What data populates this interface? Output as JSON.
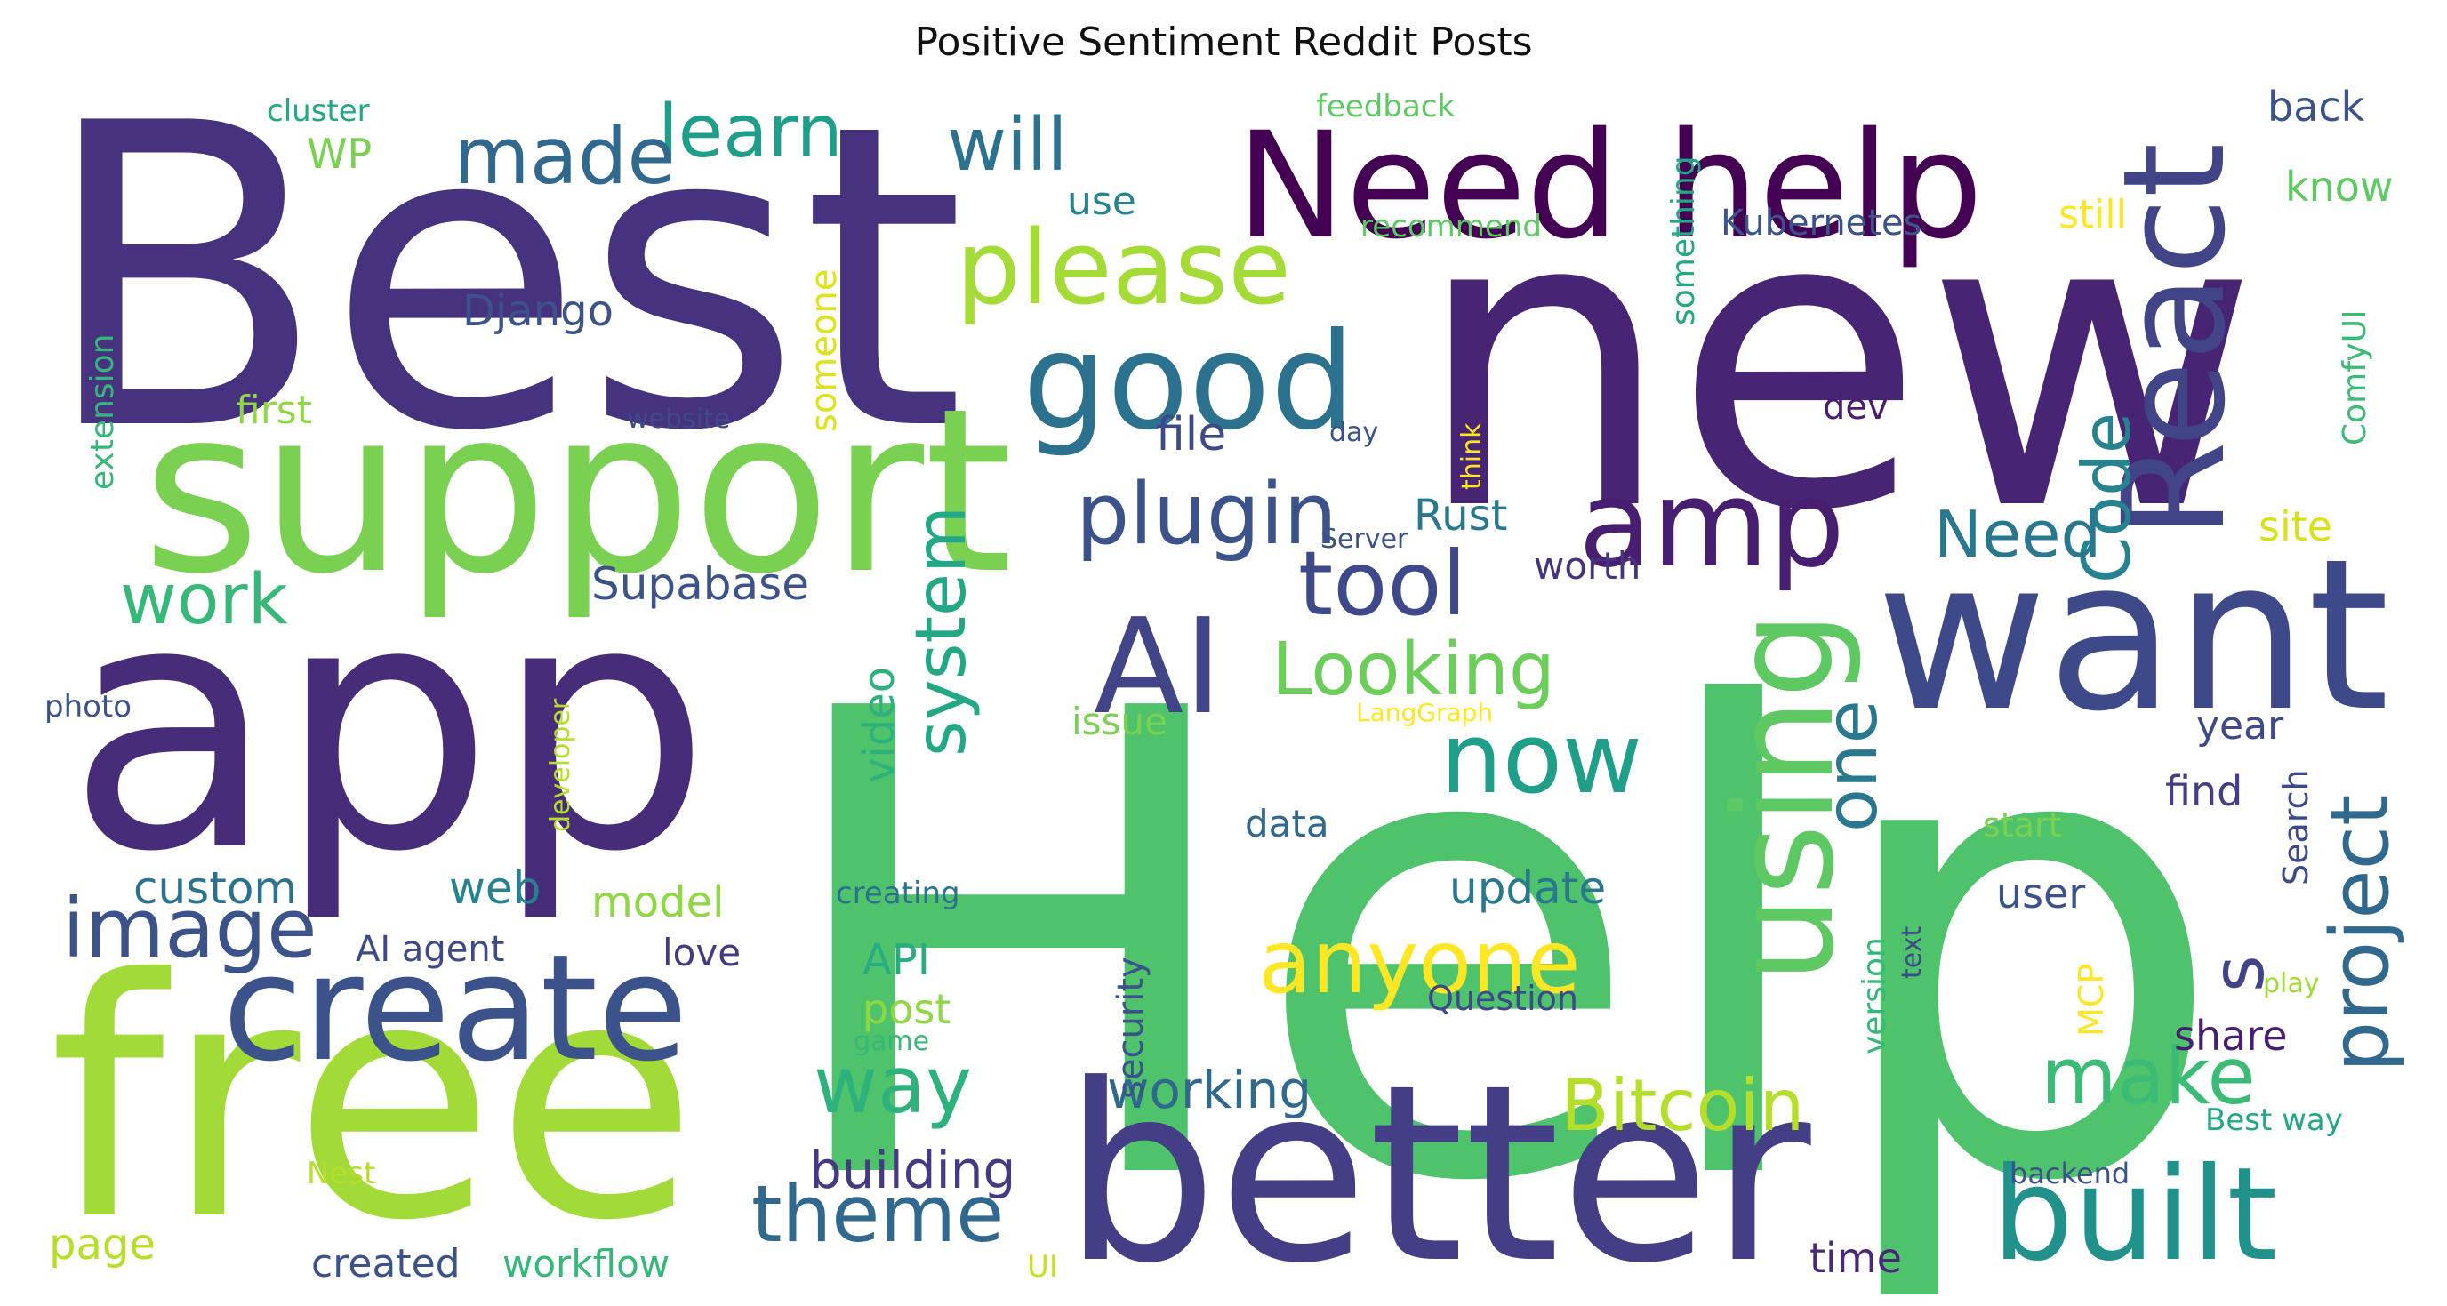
{
  "title": "Positive Sentiment Reddit Posts",
  "words": [
    {
      "text": "Help",
      "weight": 1.0,
      "color": "#4ec36b"
    },
    {
      "text": "Best",
      "weight": 0.93,
      "color": "#46327e"
    },
    {
      "text": "new",
      "weight": 0.9,
      "color": "#482475"
    },
    {
      "text": "app",
      "weight": 0.78,
      "color": "#472c7a"
    },
    {
      "text": "free",
      "weight": 0.74,
      "color": "#a2da37"
    },
    {
      "text": "better",
      "weight": 0.56,
      "color": "#433e85"
    },
    {
      "text": "support",
      "weight": 0.55,
      "color": "#7ad151"
    },
    {
      "text": "want",
      "weight": 0.47,
      "color": "#3e4989"
    },
    {
      "text": "create",
      "weight": 0.4,
      "color": "#3b528b"
    },
    {
      "text": "Need help",
      "weight": 0.4,
      "color": "#440154"
    },
    {
      "text": "using",
      "weight": 0.38,
      "color": "#5ec962"
    },
    {
      "text": "React",
      "weight": 0.38,
      "color": "#414487"
    },
    {
      "text": "good",
      "weight": 0.37,
      "color": "#2c728e"
    },
    {
      "text": "AI",
      "weight": 0.35,
      "color": "#414487"
    },
    {
      "text": "built",
      "weight": 0.35,
      "color": "#21918c"
    },
    {
      "text": "amp",
      "weight": 0.33,
      "color": "#481f70"
    },
    {
      "text": "project",
      "weight": 0.28,
      "color": "#31688e"
    },
    {
      "text": "please",
      "weight": 0.27,
      "color": "#a5db36"
    },
    {
      "text": "image",
      "weight": 0.26,
      "color": "#3b528b"
    },
    {
      "text": "one",
      "weight": 0.25,
      "color": "#2a788e"
    },
    {
      "text": "now",
      "weight": 0.25,
      "color": "#1f9e89"
    },
    {
      "text": "tool",
      "weight": 0.24,
      "color": "#3e4989"
    },
    {
      "text": "plugin",
      "weight": 0.24,
      "color": "#3b528b"
    },
    {
      "text": "anyone",
      "weight": 0.24,
      "color": "#fde725"
    },
    {
      "text": "will",
      "weight": 0.23,
      "color": "#2c728e"
    },
    {
      "text": "learn",
      "weight": 0.22,
      "color": "#1f9e89"
    },
    {
      "text": "made",
      "weight": 0.22,
      "color": "#31688e"
    },
    {
      "text": "system",
      "weight": 0.22,
      "color": "#22a884"
    },
    {
      "text": "Looking",
      "weight": 0.22,
      "color": "#6ccd5a"
    },
    {
      "text": "theme",
      "weight": 0.21,
      "color": "#31688e"
    },
    {
      "text": "way",
      "weight": 0.21,
      "color": "#2db27d"
    },
    {
      "text": "make",
      "weight": 0.21,
      "color": "#3bbb75"
    },
    {
      "text": "Bitcoin",
      "weight": 0.2,
      "color": "#b5de2b"
    },
    {
      "text": "Code",
      "weight": 0.2,
      "color": "#26828e"
    },
    {
      "text": "work",
      "weight": 0.19,
      "color": "#37b878"
    },
    {
      "text": "Need",
      "weight": 0.18,
      "color": "#2a788e"
    },
    {
      "text": "s",
      "weight": 0.18,
      "color": "#414487"
    },
    {
      "text": "building",
      "weight": 0.14,
      "color": "#443983"
    },
    {
      "text": "working",
      "weight": 0.14,
      "color": "#31688e"
    },
    {
      "text": "Supabase",
      "weight": 0.12,
      "color": "#3b528b"
    },
    {
      "text": "video",
      "weight": 0.12,
      "color": "#2db27d"
    },
    {
      "text": "custom",
      "weight": 0.12,
      "color": "#2c728e"
    },
    {
      "text": "file",
      "weight": 0.11,
      "color": "#3e4989"
    },
    {
      "text": "Django",
      "weight": 0.11,
      "color": "#3b528b"
    },
    {
      "text": "update",
      "weight": 0.11,
      "color": "#2a788e"
    },
    {
      "text": "model",
      "weight": 0.11,
      "color": "#8fd744"
    },
    {
      "text": "web",
      "weight": 0.11,
      "color": "#26828e"
    },
    {
      "text": "Rust",
      "weight": 0.1,
      "color": "#2a788e"
    },
    {
      "text": "API",
      "weight": 0.1,
      "color": "#27ad81"
    },
    {
      "text": "post",
      "weight": 0.1,
      "color": "#8fd744"
    },
    {
      "text": "user",
      "weight": 0.1,
      "color": "#3b528b"
    },
    {
      "text": "find",
      "weight": 0.1,
      "color": "#433e85"
    },
    {
      "text": "share",
      "weight": 0.1,
      "color": "#481f70"
    },
    {
      "text": "time",
      "weight": 0.1,
      "color": "#482878"
    },
    {
      "text": "WP",
      "weight": 0.1,
      "color": "#7ad151"
    },
    {
      "text": "use",
      "weight": 0.09,
      "color": "#26828e"
    },
    {
      "text": "back",
      "weight": 0.09,
      "color": "#3b528b"
    },
    {
      "text": "know",
      "weight": 0.09,
      "color": "#5ec962"
    },
    {
      "text": "someone",
      "weight": 0.09,
      "color": "#dde318"
    },
    {
      "text": "security",
      "weight": 0.09,
      "color": "#3b528b"
    },
    {
      "text": "Search",
      "weight": 0.09,
      "color": "#3e4989"
    },
    {
      "text": "ComfyUI",
      "weight": 0.09,
      "color": "#3bbb75"
    },
    {
      "text": "site",
      "weight": 0.09,
      "color": "#d8e219"
    },
    {
      "text": "year",
      "weight": 0.09,
      "color": "#3e4989"
    },
    {
      "text": "page",
      "weight": 0.09,
      "color": "#b5de2b"
    },
    {
      "text": "created",
      "weight": 0.09,
      "color": "#3b528b"
    },
    {
      "text": "workflow",
      "weight": 0.09,
      "color": "#35b779"
    },
    {
      "text": "first",
      "weight": 0.08,
      "color": "#8fd744"
    },
    {
      "text": "issue",
      "weight": 0.08,
      "color": "#7ad151"
    },
    {
      "text": "love",
      "weight": 0.08,
      "color": "#443983"
    },
    {
      "text": "AI agent",
      "weight": 0.08,
      "color": "#3e4989"
    },
    {
      "text": "Question",
      "weight": 0.08,
      "color": "#3e4989"
    },
    {
      "text": "worth",
      "weight": 0.08,
      "color": "#46327e"
    },
    {
      "text": "dev",
      "weight": 0.08,
      "color": "#481f70"
    },
    {
      "text": "still",
      "weight": 0.08,
      "color": "#fde725"
    },
    {
      "text": "data",
      "weight": 0.08,
      "color": "#31688e"
    },
    {
      "text": "something",
      "weight": 0.08,
      "color": "#22a884"
    },
    {
      "text": "Kubernetes",
      "weight": 0.08,
      "color": "#3b528b"
    },
    {
      "text": "start",
      "weight": 0.08,
      "color": "#7ad151"
    },
    {
      "text": "MCP",
      "weight": 0.08,
      "color": "#fde725"
    },
    {
      "text": "version",
      "weight": 0.08,
      "color": "#35b779"
    },
    {
      "text": "extension",
      "weight": 0.08,
      "color": "#35b779"
    },
    {
      "text": "Best way",
      "weight": 0.07,
      "color": "#22a884"
    },
    {
      "text": "cluster",
      "weight": 0.07,
      "color": "#22a884"
    },
    {
      "text": "feedback",
      "weight": 0.07,
      "color": "#5ec962"
    },
    {
      "text": "recommend",
      "weight": 0.07,
      "color": "#5ec962"
    },
    {
      "text": "backend",
      "weight": 0.07,
      "color": "#3b528b"
    },
    {
      "text": "creating",
      "weight": 0.07,
      "color": "#2c728e"
    },
    {
      "text": "developer",
      "weight": 0.07,
      "color": "#b5de2b"
    },
    {
      "text": "photo",
      "weight": 0.07,
      "color": "#3b528b"
    },
    {
      "text": "Nest",
      "weight": 0.07,
      "color": "#b5de2b"
    },
    {
      "text": "UI",
      "weight": 0.07,
      "color": "#c8e020"
    },
    {
      "text": "text",
      "weight": 0.07,
      "color": "#3e4989"
    },
    {
      "text": "play",
      "weight": 0.07,
      "color": "#a0da39"
    },
    {
      "text": "website",
      "weight": 0.06,
      "color": "#3e4989"
    },
    {
      "text": "day",
      "weight": 0.06,
      "color": "#3b528b"
    },
    {
      "text": "think",
      "weight": 0.06,
      "color": "#fde725"
    },
    {
      "text": "Server",
      "weight": 0.06,
      "color": "#3b528b"
    },
    {
      "text": "LangGraph",
      "weight": 0.06,
      "color": "#fde725"
    },
    {
      "text": "game",
      "weight": 0.06,
      "color": "#37b878"
    }
  ]
}
